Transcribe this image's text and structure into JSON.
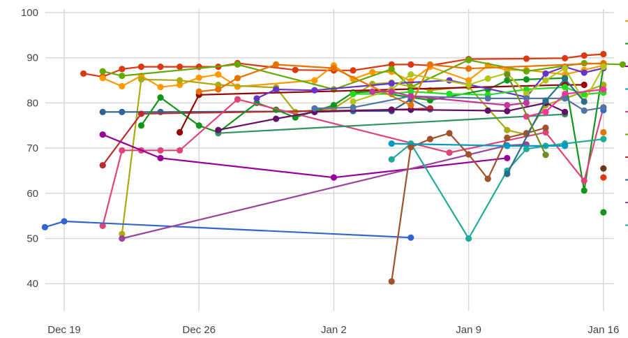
{
  "chart_data": {
    "type": "line",
    "title": "",
    "xlabel": "",
    "ylabel": "",
    "ylim": [
      35,
      100
    ],
    "y_ticks": [
      "40",
      "50",
      "60",
      "70",
      "80",
      "90",
      "100"
    ],
    "x_ticks": [
      "Dec 19",
      "Dec 26",
      "Jan 2",
      "Jan 9",
      "Jan 16"
    ],
    "grid": true,
    "legend": "right (clipped)",
    "legend_colors": [
      "#ff9900",
      "#109618",
      "#990099",
      "#0099c6",
      "#dd4477",
      "#66aa00",
      "#b82e2e",
      "#316395",
      "#994499",
      "#22aa99"
    ],
    "series": [
      {
        "color": "#dc3912",
        "points": [
          [
            "Dec 20",
            86.5
          ],
          [
            "Dec 21",
            85.8
          ],
          [
            "Dec 22",
            87.5
          ],
          [
            "Dec 23",
            88
          ],
          [
            "Dec 24",
            88
          ],
          [
            "Dec 25",
            88
          ],
          [
            "Dec 26",
            88
          ],
          [
            "Dec 27",
            88
          ],
          [
            "Dec 28",
            88.8
          ],
          [
            "Dec 31",
            87.3
          ],
          [
            "Jan 2",
            87.2
          ],
          [
            "Jan 3",
            87.2
          ],
          [
            "Jan 5",
            88.5
          ],
          [
            "Jan 6",
            88.5
          ],
          [
            "Jan 7",
            88.3
          ],
          [
            "Jan 9",
            89.7
          ],
          [
            "Jan 12",
            89.8
          ],
          [
            "Jan 14",
            89.9
          ],
          [
            "Jan 15",
            90.5
          ],
          [
            "Jan 16",
            90.8
          ]
        ]
      },
      {
        "color": "#ff9900",
        "points": [
          [
            "Dec 21",
            85.5
          ],
          [
            "Dec 22",
            83.7
          ],
          [
            "Dec 23",
            86
          ],
          [
            "Dec 24",
            83.5
          ],
          [
            "Dec 25",
            84
          ],
          [
            "Dec 26",
            85.6
          ],
          [
            "Dec 27",
            86.3
          ],
          [
            "Dec 28",
            83.6
          ],
          [
            "Jan 1",
            85
          ],
          [
            "Jan 2",
            88.3
          ],
          [
            "Jan 3",
            85.3
          ],
          [
            "Jan 4",
            86.8
          ],
          [
            "Jan 5",
            86.9
          ],
          [
            "Jan 6",
            84.8
          ],
          [
            "Jan 7",
            88
          ],
          [
            "Jan 9",
            85
          ],
          [
            "Jan 10",
            88.3
          ],
          [
            "Jan 11",
            87.3
          ],
          [
            "Jan 12",
            87.3
          ],
          [
            "Jan 14",
            86.3
          ],
          [
            "Jan 15",
            87.3
          ],
          [
            "Jan 16",
            88.3
          ]
        ]
      },
      {
        "color": "#66aa00",
        "points": [
          [
            "Dec 21",
            87
          ],
          [
            "Dec 22",
            86
          ],
          [
            "Dec 28",
            88.5
          ],
          [
            "Jan 2",
            83
          ],
          [
            "Jan 5",
            87.5
          ],
          [
            "Jan 6",
            83.5
          ],
          [
            "Jan 9",
            89.5
          ],
          [
            "Jan 12",
            87
          ],
          [
            "Jan 15",
            88.8
          ],
          [
            "Jan 17",
            88.5
          ]
        ]
      },
      {
        "color": "#aaaa11",
        "points": [
          [
            "Dec 22",
            51
          ],
          [
            "Dec 23",
            85.2
          ],
          [
            "Dec 25",
            85
          ],
          [
            "Dec 27",
            84
          ],
          [
            "Dec 30",
            83.4
          ],
          [
            "Dec 31",
            78
          ],
          [
            "Jan 2",
            78.8
          ],
          [
            "Jan 4",
            84.2
          ],
          [
            "Jan 5",
            84.5
          ],
          [
            "Jan 7",
            82.8
          ],
          [
            "Jan 9",
            83.6
          ],
          [
            "Jan 11",
            74
          ],
          [
            "Jan 12",
            73
          ],
          [
            "Jan 13",
            79.5
          ],
          [
            "Jan 14",
            81
          ],
          [
            "Jan 16",
            84
          ]
        ]
      },
      {
        "color": "#316395",
        "points": [
          [
            "Dec 21",
            78
          ],
          [
            "Dec 22",
            78
          ],
          [
            "Dec 24",
            78
          ],
          [
            "Jan 3",
            78.2
          ],
          [
            "Jan 5",
            78.2
          ],
          [
            "Jan 6",
            80.8
          ],
          [
            "Jan 7",
            78.6
          ]
        ]
      },
      {
        "color": "#b82e2e",
        "points": [
          [
            "Dec 21",
            66.2
          ],
          [
            "Dec 23",
            77.6
          ],
          [
            "Jan 5",
            78.5
          ],
          [
            "Jan 7",
            78.8
          ]
        ]
      },
      {
        "color": "#109618",
        "points": [
          [
            "Dec 23",
            75
          ],
          [
            "Dec 24",
            81.2
          ],
          [
            "Dec 26",
            75
          ],
          [
            "Dec 27",
            73.5
          ],
          [
            "Dec 29",
            80
          ],
          [
            "Dec 30",
            78.5
          ],
          [
            "Dec 31",
            76.8
          ],
          [
            "Jan 2",
            79.5
          ],
          [
            "Jan 3",
            82.3
          ],
          [
            "Jan 4",
            82.5
          ],
          [
            "Jan 7",
            80.6
          ],
          [
            "Jan 10",
            83
          ],
          [
            "Jan 11",
            85
          ],
          [
            "Jan 12",
            85.2
          ],
          [
            "Jan 14",
            85.5
          ],
          [
            "Jan 15",
            60.6
          ],
          [
            "Jan 16",
            88
          ]
        ]
      },
      {
        "color": "#109618",
        "points": [
          [
            "Jan 16",
            55.8
          ]
        ]
      },
      {
        "color": "#990000",
        "points": [
          [
            "Dec 25",
            73.5
          ],
          [
            "Dec 26",
            81.8
          ],
          [
            "Jan 14",
            84
          ],
          [
            "Jan 15",
            84
          ]
        ]
      },
      {
        "color": "#dd4477",
        "points": [
          [
            "Dec 21",
            52.8
          ],
          [
            "Dec 22",
            69.5
          ],
          [
            "Dec 23",
            69.5
          ],
          [
            "Dec 24",
            69.5
          ],
          [
            "Dec 25",
            69.5
          ],
          [
            "Dec 28",
            80.8
          ],
          [
            "Jan 8",
            69
          ],
          [
            "Jan 13",
            73.5
          ],
          [
            "Jan 15",
            62.8
          ],
          [
            "Jan 16",
            79
          ]
        ]
      },
      {
        "color": "#990099",
        "points": [
          [
            "Dec 21",
            73
          ],
          [
            "Dec 24",
            67.8
          ],
          [
            "Jan 2",
            63.5
          ],
          [
            "Jan 11",
            67.8
          ]
        ]
      },
      {
        "color": "#3366cc",
        "points": [
          [
            "Dec 18",
            52.5
          ],
          [
            "Dec 19",
            53.8
          ],
          [
            "Jan 6",
            50.2
          ]
        ]
      },
      {
        "color": "#3366cc",
        "points": [
          [
            "Jan 16",
            78.4
          ]
        ]
      },
      {
        "color": "#994499",
        "points": [
          [
            "Dec 22",
            50
          ],
          [
            "Jan 11",
            70.6
          ],
          [
            "Jan 12",
            70.8
          ]
        ]
      },
      {
        "color": "#22aa99",
        "points": [
          [
            "Jan 5",
            67.5
          ],
          [
            "Jan 6",
            71
          ],
          [
            "Jan 9",
            50
          ],
          [
            "Jan 11",
            65
          ],
          [
            "Jan 12",
            69.8
          ],
          [
            "Jan 13",
            70.5
          ],
          [
            "Jan 14",
            71
          ],
          [
            "Jan 16",
            72
          ]
        ]
      },
      {
        "color": "#a0522d",
        "points": [
          [
            "Jan 5",
            40.5
          ],
          [
            "Jan 6",
            70.2
          ],
          [
            "Jan 7",
            72
          ],
          [
            "Jan 8",
            73.3
          ],
          [
            "Jan 9",
            68.6
          ],
          [
            "Jan 10",
            63.2
          ],
          [
            "Jan 11",
            72.3
          ],
          [
            "Jan 12",
            73.3
          ],
          [
            "Jan 13",
            74.5
          ]
        ]
      },
      {
        "color": "#6b3a1a",
        "points": [
          [
            "Jan 16",
            65.5
          ]
        ]
      },
      {
        "color": "#e67300",
        "points": [
          [
            "Jan 16",
            73.5
          ]
        ]
      },
      {
        "color": "#dc3912",
        "points": [
          [
            "Jan 16",
            63.5
          ]
        ]
      },
      {
        "color": "#0099c6",
        "points": [
          [
            "Jan 5",
            71
          ],
          [
            "Jan 11",
            70.5
          ],
          [
            "Jan 14",
            70.5
          ]
        ]
      },
      {
        "color": "#329262",
        "points": [
          [
            "Dec 27",
            73.3
          ],
          [
            "Jan 14",
            77.5
          ]
        ]
      },
      {
        "color": "#651067",
        "points": [
          [
            "Dec 27",
            74
          ],
          [
            "Dec 30",
            76.5
          ],
          [
            "Jan 1",
            78
          ],
          [
            "Jan 5",
            78.5
          ],
          [
            "Jan 6",
            78.5
          ],
          [
            "Jan 10",
            78.3
          ],
          [
            "Jan 11",
            78.2
          ],
          [
            "Jan 13",
            80
          ],
          [
            "Jan 14",
            78
          ]
        ]
      },
      {
        "color": "#6633cc",
        "points": [
          [
            "Dec 29",
            81
          ],
          [
            "Dec 30",
            83
          ],
          [
            "Jan 1",
            82.8
          ],
          [
            "Jan 5",
            84.3
          ],
          [
            "Jan 8",
            85
          ],
          [
            "Jan 12",
            81.3
          ],
          [
            "Jan 13",
            86.5
          ],
          [
            "Jan 14",
            88
          ],
          [
            "Jan 15",
            86.7
          ],
          [
            "Jan 16",
            87.7
          ]
        ]
      },
      {
        "color": "#22dd22",
        "points": [
          [
            "Jan 3",
            82
          ],
          [
            "Jan 5",
            82
          ],
          [
            "Jan 6",
            82.5
          ],
          [
            "Jan 8",
            82
          ],
          [
            "Jan 10",
            81.8
          ],
          [
            "Jan 12",
            83
          ],
          [
            "Jan 14",
            83.5
          ],
          [
            "Jan 15",
            81.9
          ],
          [
            "Jan 16",
            82.3
          ]
        ]
      },
      {
        "color": "#e67300",
        "points": [
          [
            "Dec 26",
            82.5
          ],
          [
            "Dec 27",
            83
          ],
          [
            "Dec 28",
            85.5
          ],
          [
            "Dec 30",
            88.5
          ],
          [
            "Jan 2",
            87.7
          ],
          [
            "Jan 6",
            79.5
          ],
          [
            "Jan 7",
            88.5
          ],
          [
            "Jan 9",
            87.6
          ],
          [
            "Jan 16",
            88.8
          ]
        ]
      },
      {
        "color": "#b3c41b",
        "points": [
          [
            "Jan 3",
            80.3
          ],
          [
            "Jan 5",
            83
          ],
          [
            "Jan 6",
            86.3
          ],
          [
            "Jan 9",
            84
          ],
          [
            "Jan 10",
            85.4
          ],
          [
            "Jan 11",
            86.6
          ],
          [
            "Jan 12",
            82
          ],
          [
            "Jan 13",
            85
          ],
          [
            "Jan 14",
            87.7
          ],
          [
            "Jan 15",
            80.3
          ],
          [
            "Jan 16",
            88
          ]
        ]
      },
      {
        "color": "#ff3399",
        "points": [
          [
            "Jan 12",
            77
          ],
          [
            "Jan 13",
            78
          ],
          [
            "Jan 14",
            82
          ],
          [
            "Jan 16",
            83
          ]
        ]
      },
      {
        "color": "#5574a6",
        "points": [
          [
            "Jan 1",
            78.8
          ],
          [
            "Jan 3",
            79
          ],
          [
            "Jan 6",
            81.5
          ],
          [
            "Jan 10",
            81
          ],
          [
            "Jan 12",
            81
          ],
          [
            "Jan 14",
            81
          ],
          [
            "Jan 15",
            78.3
          ],
          [
            "Jan 16",
            79
          ]
        ]
      },
      {
        "color": "#c0399a",
        "points": [
          [
            "Jan 4",
            82.5
          ],
          [
            "Jan 5",
            82.5
          ],
          [
            "Jan 6",
            81.5
          ],
          [
            "Jan 11",
            79.5
          ],
          [
            "Jan 12",
            80
          ]
        ]
      },
      {
        "color": "#2a6f8a",
        "points": [
          [
            "Jan 11",
            64.3
          ],
          [
            "Jan 13",
            80.5
          ],
          [
            "Jan 14",
            85.3
          ],
          [
            "Jan 15",
            80.3
          ]
        ]
      },
      {
        "color": "#6b8e23",
        "points": [
          [
            "Jan 11",
            86.3
          ],
          [
            "Jan 13",
            68.5
          ]
        ]
      }
    ]
  }
}
